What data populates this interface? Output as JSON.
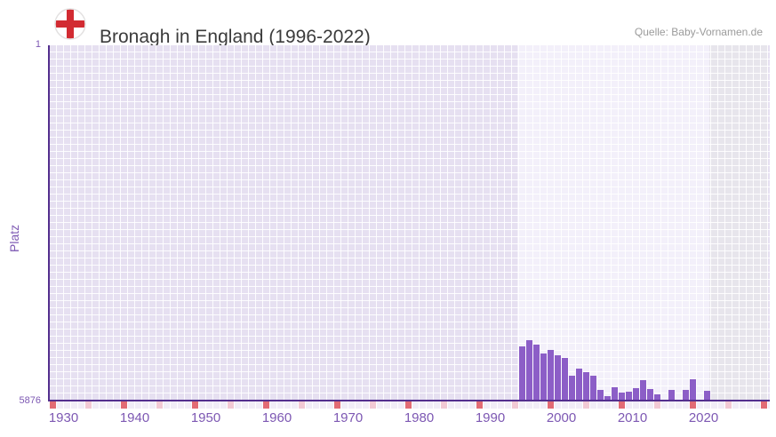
{
  "header": {
    "title": "Bronagh in England (1996-2022)",
    "source": "Quelle: Baby-Vornamen.de"
  },
  "chart_data": {
    "type": "bar",
    "title": "Bronagh in England (1996-2022)",
    "ylabel": "Platz",
    "xlabel": "",
    "grid": true,
    "legend_position": "none",
    "y_axis": {
      "min": 1,
      "max": 5876,
      "inverted": true,
      "top_label": "1",
      "bottom_label": "5876"
    },
    "x_axis": {
      "start": 1930,
      "end": 2031,
      "major_tick_every": 10,
      "minor_tick_every": 5,
      "decade_labels": [
        "1930",
        "1940",
        "1950",
        "1960",
        "1970",
        "1980",
        "1990",
        "2000",
        "2010",
        "2020"
      ]
    },
    "highlight_band_years": {
      "from": 1996,
      "to": 2023
    },
    "future_band_years": {
      "from": 2023,
      "to": 2031
    },
    "series": [
      {
        "name": "Platz",
        "points": [
          {
            "year": 1996,
            "rank": 4997
          },
          {
            "year": 1997,
            "rank": 4890
          },
          {
            "year": 1998,
            "rank": 4959
          },
          {
            "year": 1999,
            "rank": 5106
          },
          {
            "year": 2000,
            "rank": 5047
          },
          {
            "year": 2001,
            "rank": 5135
          },
          {
            "year": 2002,
            "rank": 5184
          },
          {
            "year": 2003,
            "rank": 5474
          },
          {
            "year": 2004,
            "rank": 5356
          },
          {
            "year": 2005,
            "rank": 5415
          },
          {
            "year": 2006,
            "rank": 5474
          },
          {
            "year": 2007,
            "rank": 5710
          },
          {
            "year": 2008,
            "rank": 5817
          },
          {
            "year": 2009,
            "rank": 5670
          },
          {
            "year": 2010,
            "rank": 5763
          },
          {
            "year": 2011,
            "rank": 5748
          },
          {
            "year": 2012,
            "rank": 5685
          },
          {
            "year": 2013,
            "rank": 5557
          },
          {
            "year": 2014,
            "rank": 5699
          },
          {
            "year": 2015,
            "rank": 5788
          },
          {
            "year": 2016,
            "rank": null
          },
          {
            "year": 2017,
            "rank": 5710
          },
          {
            "year": 2018,
            "rank": null
          },
          {
            "year": 2019,
            "rank": 5710
          },
          {
            "year": 2020,
            "rank": 5533
          },
          {
            "year": 2021,
            "rank": null
          },
          {
            "year": 2022,
            "rank": 5733
          }
        ]
      }
    ]
  },
  "colors": {
    "bar": "#8c5ec7",
    "axis_line": "#532f8e",
    "axis_label": "#7d58b3",
    "plot_bg": "#e6e0f1",
    "band_light": "#f3f0fa",
    "band_future": "#e7e5ec",
    "tick_base": "#f1edf7",
    "tick_major": "#e26b74",
    "tick_minor": "#f2c9d4",
    "title_text": "#3b3b3b",
    "source_text": "#9b9b9b",
    "flag_red": "#d22b32"
  }
}
